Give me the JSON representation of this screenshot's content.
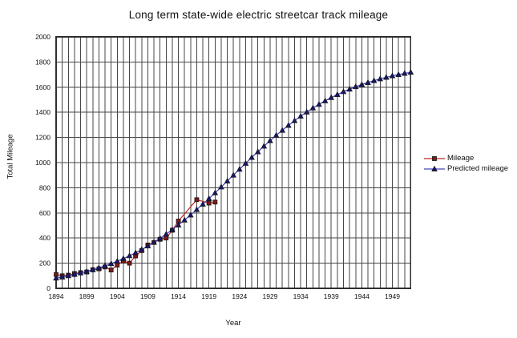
{
  "title": "Long term state-wide electric streetcar track mileage",
  "chart_data": {
    "type": "line",
    "title": "Long term state-wide electric streetcar track mileage",
    "xlabel": "Year",
    "ylabel": "Total Mileage",
    "xlim": [
      1894,
      1952
    ],
    "ylim": [
      0,
      2000
    ],
    "x_ticks": [
      1894,
      1899,
      1904,
      1909,
      1914,
      1919,
      1924,
      1929,
      1934,
      1939,
      1944,
      1949
    ],
    "y_ticks": [
      0,
      200,
      400,
      600,
      800,
      1000,
      1200,
      1400,
      1600,
      1800,
      2000
    ],
    "x_grid_step": 1,
    "y_grid_step": 200,
    "grid": true,
    "grid_color": "#474747",
    "axis_color": "#2e2e2e",
    "tick_color": "#111111",
    "legend_position": "right",
    "series": [
      {
        "name": "Mileage",
        "marker": "square",
        "line_color": "#c42424",
        "marker_color": "#821818",
        "points": [
          [
            1894,
            110
          ],
          [
            1895,
            100
          ],
          [
            1896,
            105
          ],
          [
            1897,
            118
          ],
          [
            1898,
            125
          ],
          [
            1899,
            130
          ],
          [
            1900,
            148
          ],
          [
            1901,
            155
          ],
          [
            1902,
            170
          ],
          [
            1903,
            146
          ],
          [
            1904,
            185
          ],
          [
            1905,
            218
          ],
          [
            1906,
            200
          ],
          [
            1907,
            258
          ],
          [
            1908,
            300
          ],
          [
            1909,
            345
          ],
          [
            1910,
            365
          ],
          [
            1911,
            390
          ],
          [
            1912,
            400
          ],
          [
            1913,
            462
          ],
          [
            1914,
            535
          ],
          [
            1917,
            705
          ],
          [
            1919,
            678
          ],
          [
            1920,
            686
          ]
        ]
      },
      {
        "name": "Predicted mileage",
        "marker": "triangle",
        "line_color": "#4444bd",
        "marker_color": "#17176b",
        "points": [
          [
            1894,
            82
          ],
          [
            1895,
            90
          ],
          [
            1896,
            100
          ],
          [
            1897,
            110
          ],
          [
            1898,
            122
          ],
          [
            1899,
            134
          ],
          [
            1900,
            148
          ],
          [
            1901,
            163
          ],
          [
            1902,
            179
          ],
          [
            1903,
            196
          ],
          [
            1904,
            216
          ],
          [
            1905,
            236
          ],
          [
            1906,
            259
          ],
          [
            1907,
            283
          ],
          [
            1908,
            309
          ],
          [
            1909,
            337
          ],
          [
            1910,
            366
          ],
          [
            1911,
            398
          ],
          [
            1912,
            431
          ],
          [
            1913,
            467
          ],
          [
            1914,
            504
          ],
          [
            1915,
            543
          ],
          [
            1916,
            583
          ],
          [
            1917,
            626
          ],
          [
            1918,
            669
          ],
          [
            1919,
            714
          ],
          [
            1920,
            759
          ],
          [
            1921,
            806
          ],
          [
            1922,
            853
          ],
          [
            1923,
            900
          ],
          [
            1924,
            947
          ],
          [
            1925,
            994
          ],
          [
            1926,
            1041
          ],
          [
            1927,
            1086
          ],
          [
            1928,
            1131
          ],
          [
            1929,
            1174
          ],
          [
            1930,
            1217
          ],
          [
            1931,
            1257
          ],
          [
            1932,
            1296
          ],
          [
            1933,
            1333
          ],
          [
            1934,
            1369
          ],
          [
            1935,
            1402
          ],
          [
            1936,
            1434
          ],
          [
            1937,
            1463
          ],
          [
            1938,
            1491
          ],
          [
            1939,
            1517
          ],
          [
            1940,
            1541
          ],
          [
            1941,
            1564
          ],
          [
            1942,
            1584
          ],
          [
            1943,
            1604
          ],
          [
            1944,
            1621
          ],
          [
            1945,
            1637
          ],
          [
            1946,
            1652
          ],
          [
            1947,
            1666
          ],
          [
            1948,
            1678
          ],
          [
            1949,
            1690
          ],
          [
            1950,
            1700
          ],
          [
            1951,
            1710
          ],
          [
            1952,
            1718
          ]
        ]
      }
    ]
  }
}
